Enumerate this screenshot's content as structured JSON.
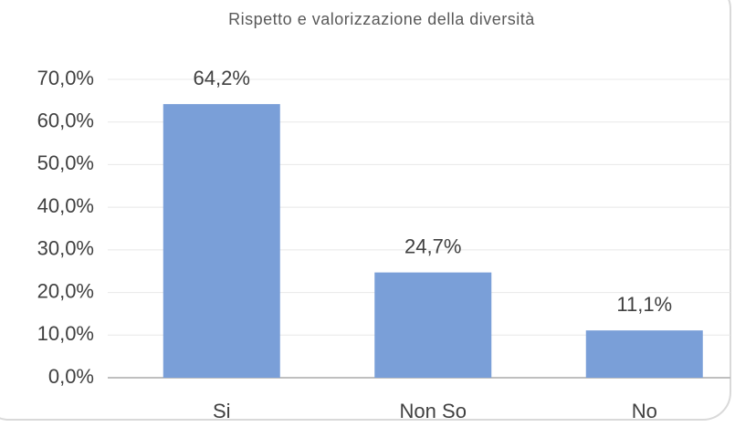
{
  "chart_data": {
    "type": "bar",
    "title": "Rispetto e valorizzazione della diversità",
    "categories": [
      "Si",
      "Non So",
      "No"
    ],
    "values": [
      64.2,
      24.7,
      11.1
    ],
    "value_labels": [
      "64,2%",
      "24,7%",
      "11,1%"
    ],
    "color": "#7a9fd8",
    "ylim": [
      0,
      70
    ],
    "yticks": [
      {
        "value": 0,
        "label": "0,0%"
      },
      {
        "value": 10,
        "label": "10,0%"
      },
      {
        "value": 20,
        "label": "20,0%"
      },
      {
        "value": 30,
        "label": "30,0%"
      },
      {
        "value": 40,
        "label": "40,0%"
      },
      {
        "value": 50,
        "label": "50,0%"
      },
      {
        "value": 60,
        "label": "60,0%"
      },
      {
        "value": 70,
        "label": "70,0%"
      }
    ],
    "grid": true
  }
}
